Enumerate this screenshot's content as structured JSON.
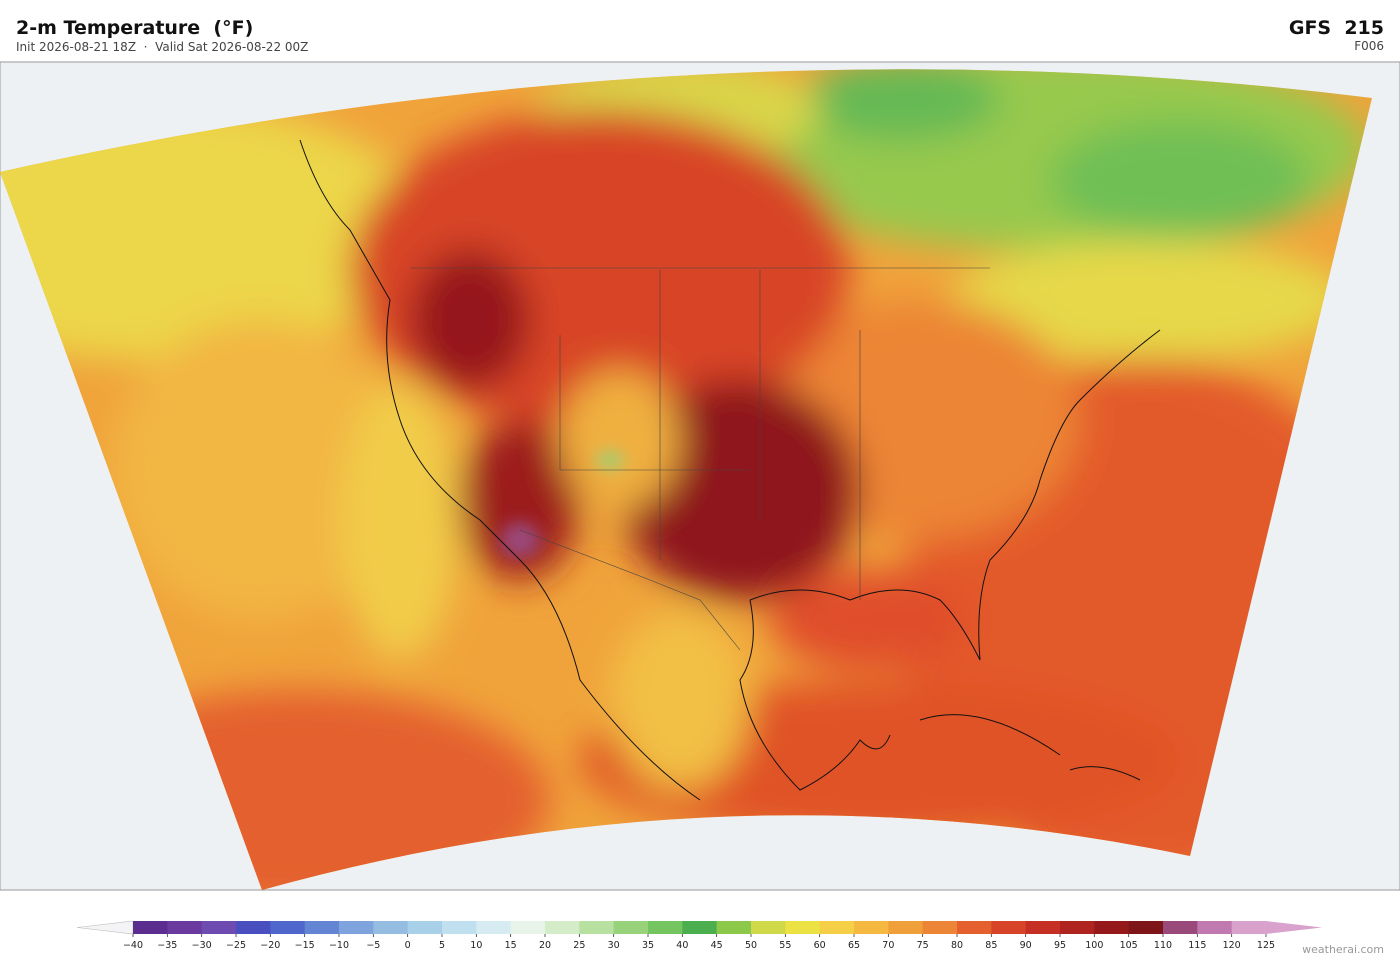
{
  "header": {
    "title": "2-m Temperature  (°F)",
    "subtitle": "Init 2026-08-21 18Z  ·  Valid Sat 2026-08-22 00Z",
    "model": "GFS  215",
    "forecast_hour": "F006"
  },
  "colorbar": {
    "ticks": [
      "−40",
      "−35",
      "−30",
      "−25",
      "−20",
      "−15",
      "−10",
      "−5",
      "0",
      "5",
      "10",
      "15",
      "20",
      "25",
      "30",
      "35",
      "40",
      "45",
      "50",
      "55",
      "60",
      "65",
      "70",
      "75",
      "80",
      "85",
      "90",
      "95",
      "100",
      "105",
      "110",
      "115",
      "120",
      "125"
    ],
    "colors": [
      "#5b2d8e",
      "#6a3a9e",
      "#6e4bb0",
      "#4a4fc0",
      "#4f66cc",
      "#6484d4",
      "#7fa3dc",
      "#95bde2",
      "#a8d0e8",
      "#c0e0ef",
      "#d6ecf2",
      "#e8f4ea",
      "#d4edc8",
      "#b8e0a0",
      "#98d27a",
      "#74c460",
      "#4caf4f",
      "#8cc84a",
      "#cfd94a",
      "#ede244",
      "#f5cf45",
      "#f5b840",
      "#f0a03a",
      "#ec8535",
      "#e4602e",
      "#d84428",
      "#c63024",
      "#b02420",
      "#95191a",
      "#7e1518",
      "#9a4a7a",
      "#c17aaf",
      "#d8a2cc"
    ],
    "under_color": "#f4f4f6",
    "over_color": "#d8a2cc"
  },
  "watermark": "weatherai.com"
}
